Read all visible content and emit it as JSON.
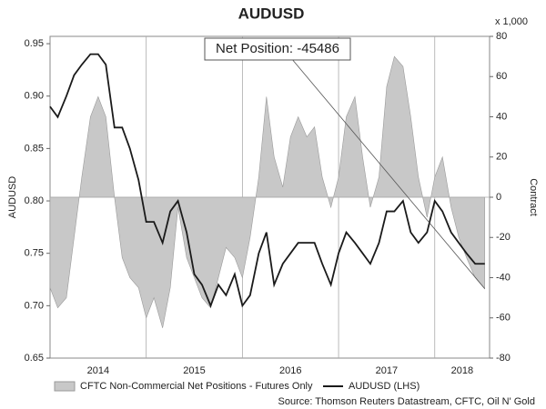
{
  "chart_data": {
    "type": "line",
    "title": "AUDUSD",
    "y_label": "AUDUSD",
    "y2_label": "Contract",
    "y2_unit": "x 1,000",
    "annotation": "Net Position: -45486",
    "source": "Source: Thomson Reuters Datastream, CFTC, Oil N' Gold",
    "x": [
      2014.0,
      2014.08,
      2014.17,
      2014.25,
      2014.33,
      2014.42,
      2014.5,
      2014.58,
      2014.67,
      2014.75,
      2014.83,
      2014.92,
      2015.0,
      2015.08,
      2015.17,
      2015.25,
      2015.33,
      2015.42,
      2015.5,
      2015.58,
      2015.67,
      2015.75,
      2015.83,
      2015.92,
      2016.0,
      2016.08,
      2016.17,
      2016.25,
      2016.33,
      2016.42,
      2016.5,
      2016.58,
      2016.67,
      2016.75,
      2016.83,
      2016.92,
      2017.0,
      2017.08,
      2017.17,
      2017.25,
      2017.33,
      2017.42,
      2017.5,
      2017.58,
      2017.67,
      2017.75,
      2017.83,
      2017.92,
      2018.0,
      2018.08,
      2018.17,
      2018.25,
      2018.33,
      2018.42,
      2018.52
    ],
    "series": [
      {
        "name": "CFTC Non-Commercial Net Positions - Futures Only",
        "type": "area",
        "axis": "y2",
        "color": "#c8c8c8",
        "edge": "#9a9a9a",
        "values": [
          -45,
          -55,
          -50,
          -20,
          10,
          40,
          50,
          40,
          0,
          -30,
          -40,
          -45,
          -60,
          -50,
          -65,
          -45,
          -5,
          -30,
          -40,
          -50,
          -55,
          -40,
          -25,
          -30,
          -40,
          -20,
          10,
          50,
          20,
          5,
          30,
          40,
          30,
          35,
          10,
          -5,
          10,
          40,
          50,
          20,
          -5,
          10,
          55,
          70,
          65,
          40,
          10,
          -10,
          10,
          20,
          -5,
          -20,
          -30,
          -40,
          -45.486
        ]
      },
      {
        "name": "AUDUSD (LHS)",
        "type": "line",
        "axis": "y",
        "color": "#1a1a1a",
        "values": [
          0.89,
          0.88,
          0.9,
          0.92,
          0.93,
          0.94,
          0.94,
          0.93,
          0.87,
          0.87,
          0.85,
          0.82,
          0.78,
          0.78,
          0.76,
          0.79,
          0.8,
          0.77,
          0.73,
          0.72,
          0.7,
          0.72,
          0.71,
          0.73,
          0.7,
          0.71,
          0.75,
          0.77,
          0.72,
          0.74,
          0.75,
          0.76,
          0.76,
          0.76,
          0.74,
          0.72,
          0.75,
          0.77,
          0.76,
          0.75,
          0.74,
          0.76,
          0.79,
          0.79,
          0.8,
          0.77,
          0.76,
          0.77,
          0.8,
          0.79,
          0.77,
          0.76,
          0.75,
          0.74,
          0.74
        ]
      }
    ],
    "xlim": [
      2014.0,
      2018.57
    ],
    "xticks": [
      2014,
      2015,
      2016,
      2017,
      2018
    ],
    "xgrid": true,
    "ylim": [
      0.65,
      0.957
    ],
    "yticks": [
      0.65,
      {
        "value": 0.7,
        "label": "0.70"
      },
      0.75,
      {
        "value": 0.8,
        "label": "0.80"
      },
      0.85,
      {
        "value": 0.9,
        "label": "0.90"
      },
      0.95
    ],
    "y2lim": [
      -80,
      80
    ],
    "y2ticks": [
      -80,
      -60,
      -40,
      -20,
      0,
      20,
      40,
      60,
      80
    ]
  }
}
